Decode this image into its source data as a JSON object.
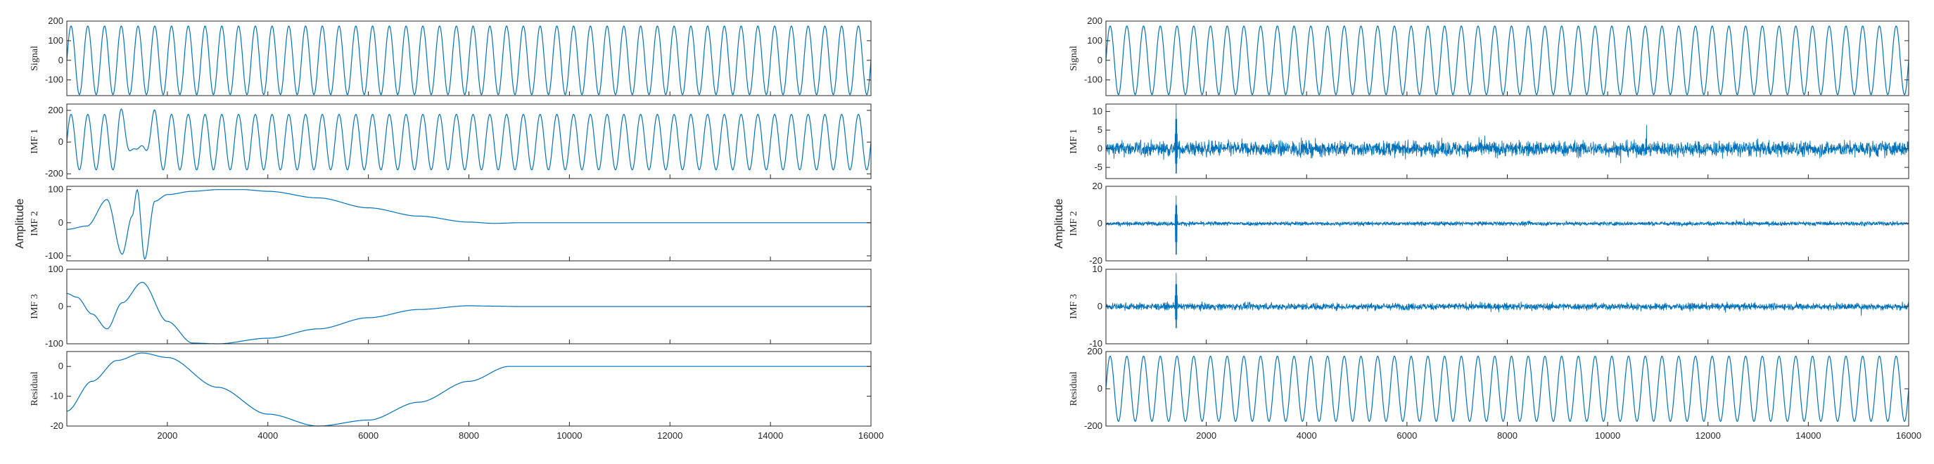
{
  "colors": {
    "series": "#0072bd",
    "axis": "#262626"
  },
  "chart_data": [
    {
      "type": "line",
      "figure_label": "Amplitude",
      "xlim": [
        0,
        16000
      ],
      "xticks": [
        2000,
        4000,
        6000,
        8000,
        10000,
        12000,
        14000,
        16000
      ],
      "grid": false,
      "legend": "none",
      "panels": [
        {
          "ylabel": "Signal",
          "ylim": [
            -180,
            200
          ],
          "yticks": [
            -100,
            0,
            100,
            200
          ],
          "pattern": "sine",
          "amplitude": 175,
          "cycles": 48
        },
        {
          "ylabel": "IMF 1",
          "ylim": [
            -230,
            240
          ],
          "yticks": [
            -200,
            0,
            200
          ],
          "pattern": "sine_with_disturbance",
          "amplitude": 175,
          "cycles": 48,
          "disturbance_x": [
            1000,
            1800
          ]
        },
        {
          "ylabel": "IMF 2",
          "ylim": [
            -115,
            110
          ],
          "yticks": [
            -100,
            0,
            100
          ],
          "pattern": "curve",
          "x": [
            0,
            400,
            800,
            1100,
            1300,
            1400,
            1550,
            1750,
            2000,
            2500,
            3000,
            3500,
            4000,
            5000,
            6000,
            7000,
            8000,
            8500,
            9000,
            16000
          ],
          "y": [
            -20,
            -10,
            70,
            -95,
            20,
            100,
            -110,
            65,
            85,
            95,
            100,
            100,
            95,
            75,
            45,
            20,
            2,
            -2,
            0,
            0
          ]
        },
        {
          "ylabel": "IMF 3",
          "ylim": [
            -100,
            100
          ],
          "yticks": [
            -100,
            0,
            100
          ],
          "pattern": "curve",
          "x": [
            0,
            200,
            500,
            800,
            1100,
            1500,
            2000,
            2500,
            3000,
            4000,
            5000,
            6000,
            7000,
            8000,
            8500,
            9000,
            16000
          ],
          "y": [
            35,
            25,
            -20,
            -60,
            10,
            65,
            -40,
            -98,
            -100,
            -85,
            -60,
            -30,
            -8,
            2,
            1,
            0,
            0
          ]
        },
        {
          "ylabel": "Residual",
          "ylim": [
            -20,
            5
          ],
          "yticks": [
            -20,
            -10,
            0
          ],
          "pattern": "curve",
          "x": [
            0,
            500,
            1000,
            1500,
            2000,
            3000,
            4000,
            5000,
            6000,
            7000,
            8000,
            8800,
            16000
          ],
          "y": [
            -15,
            -5,
            2,
            4.5,
            3,
            -7,
            -16,
            -20,
            -18,
            -12,
            -5,
            0,
            0
          ]
        }
      ]
    },
    {
      "type": "line",
      "figure_label": "Amplitude",
      "xlim": [
        0,
        16000
      ],
      "xticks": [
        2000,
        4000,
        6000,
        8000,
        10000,
        12000,
        14000,
        16000
      ],
      "grid": false,
      "legend": "none",
      "panels": [
        {
          "ylabel": "Signal",
          "ylim": [
            -180,
            200
          ],
          "yticks": [
            -100,
            0,
            100,
            200
          ],
          "pattern": "sine",
          "amplitude": 175,
          "cycles": 48
        },
        {
          "ylabel": "IMF 1",
          "ylim": [
            -8,
            12
          ],
          "yticks": [
            -5,
            0,
            5,
            10
          ],
          "pattern": "noise",
          "noise_amplitude": 2.2,
          "spike_x": 1400,
          "spike_max": 12,
          "spike_min": -8
        },
        {
          "ylabel": "IMF 2",
          "ylim": [
            -20,
            20
          ],
          "yticks": [
            -20,
            0,
            20
          ],
          "pattern": "noise",
          "noise_amplitude": 1.2,
          "spike_x": 1400,
          "spike_max": 15,
          "spike_min": -20
        },
        {
          "ylabel": "IMF 3",
          "ylim": [
            -10,
            10
          ],
          "yticks": [
            -10,
            0,
            10
          ],
          "pattern": "noise",
          "noise_amplitude": 1.0,
          "spike_x": 1400,
          "spike_max": 9,
          "spike_min": -7
        },
        {
          "ylabel": "Residual",
          "ylim": [
            -200,
            200
          ],
          "yticks": [
            -200,
            0,
            200
          ],
          "pattern": "sine",
          "amplitude": 175,
          "cycles": 48
        }
      ]
    }
  ]
}
